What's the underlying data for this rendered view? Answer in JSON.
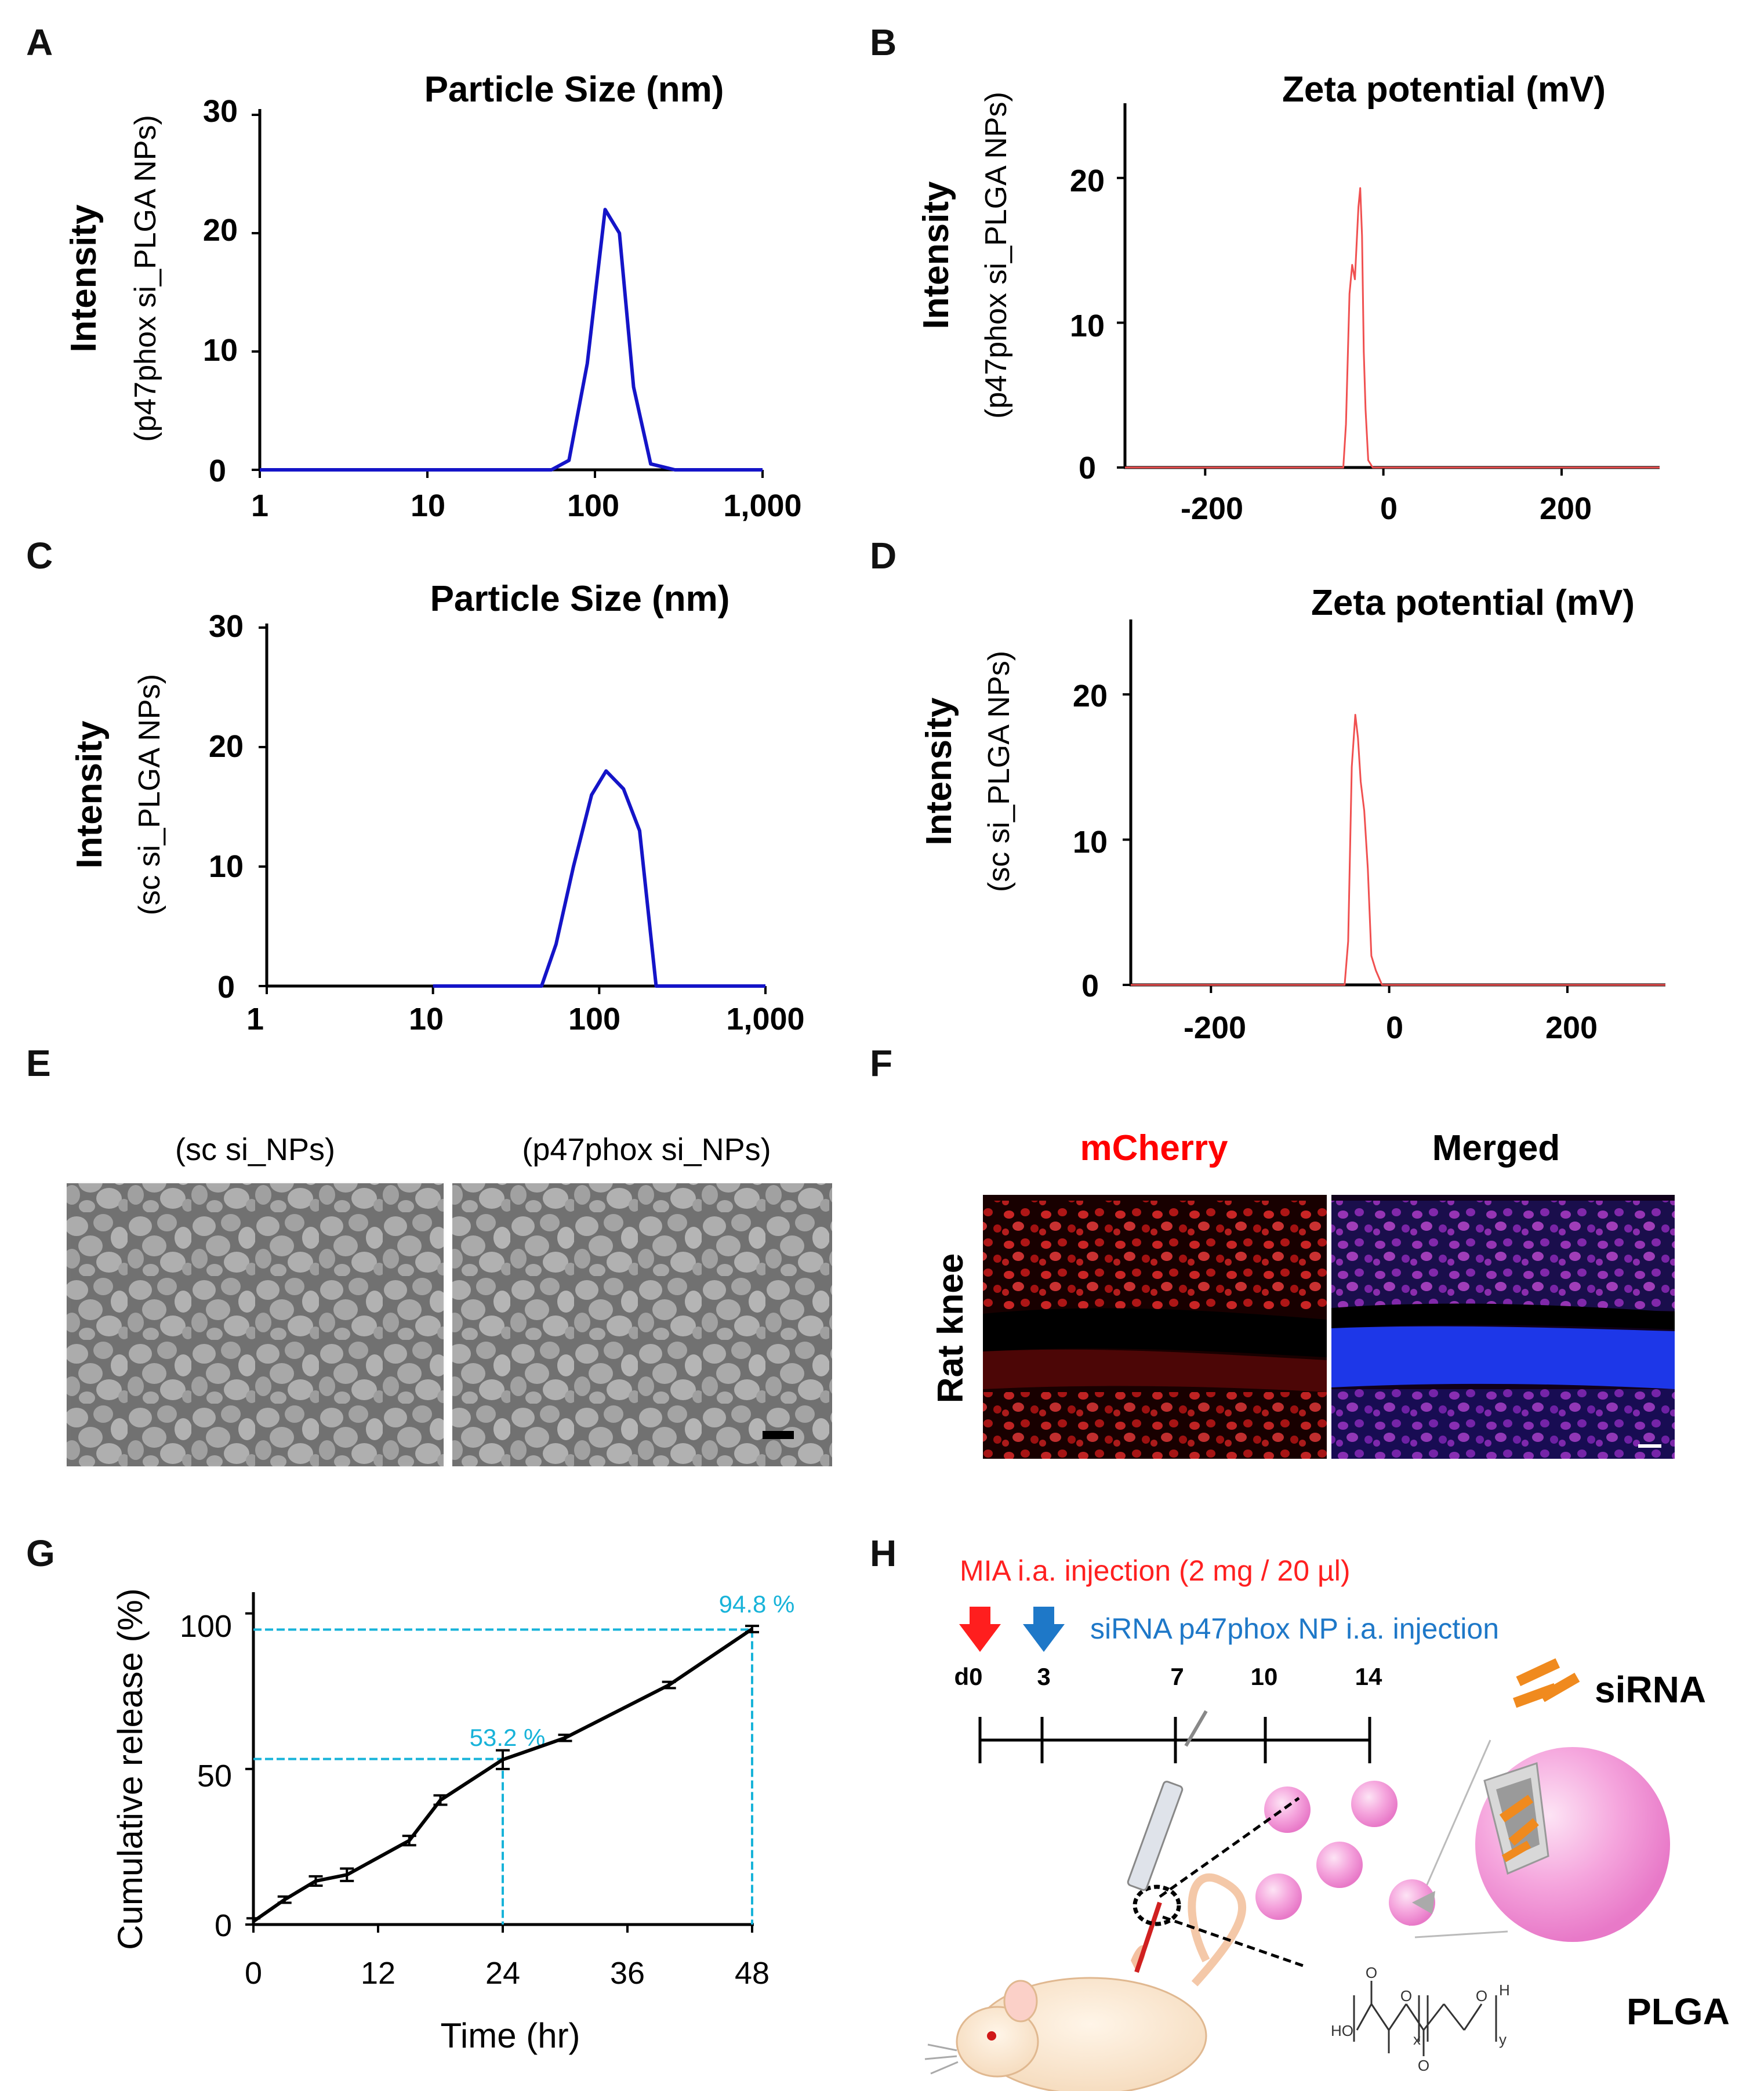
{
  "panels": {
    "A": "A",
    "B": "B",
    "C": "C",
    "D": "D",
    "E": "E",
    "F": "F",
    "G": "G",
    "H": "H"
  },
  "chart_data": [
    {
      "id": "A",
      "type": "line",
      "title": "Particle Size (nm)",
      "ylabel": "Intensity",
      "ylabel2": "(p47phox si_PLGA NPs)",
      "xscale": "log",
      "xlim": [
        1,
        1000
      ],
      "ylim": [
        0,
        30
      ],
      "xticks": [
        "1",
        "10",
        "100",
        "1,000"
      ],
      "yticks": [
        "0",
        "10",
        "20",
        "30"
      ],
      "color": "#1414c8",
      "x": [
        1,
        55,
        70,
        90,
        115,
        140,
        170,
        215,
        300,
        1000
      ],
      "y": [
        0,
        0,
        0.8,
        9,
        22,
        20,
        7,
        0.5,
        0,
        0
      ]
    },
    {
      "id": "B",
      "type": "line",
      "title": "Zeta potential (mV)",
      "ylabel": "Intensity",
      "ylabel2": "(p47phox si_PLGA NPs)",
      "xlim": [
        -290,
        310
      ],
      "ylim": [
        0,
        25
      ],
      "xticks": [
        "-200",
        "0",
        "200"
      ],
      "yticks": [
        "0",
        "10",
        "20"
      ],
      "color": "#f05050",
      "x": [
        -290,
        -45,
        -42,
        -38,
        -35,
        -32,
        -28,
        -26,
        -24,
        -22,
        -20,
        -17,
        -12,
        310
      ],
      "y": [
        0,
        0,
        3,
        12,
        14,
        13,
        18,
        19.3,
        16,
        8,
        4,
        0.5,
        0,
        0
      ]
    },
    {
      "id": "C",
      "type": "line",
      "title": "Particle Size (nm)",
      "ylabel": "Intensity",
      "ylabel2": "(sc si_PLGA NPs)",
      "xscale": "log",
      "xlim": [
        1,
        1000
      ],
      "ylim": [
        0,
        30
      ],
      "xticks": [
        "1",
        "10",
        "100",
        "1,000"
      ],
      "yticks": [
        "0",
        "10",
        "20",
        "30"
      ],
      "color": "#1414c8",
      "x": [
        10,
        45,
        55,
        70,
        90,
        110,
        140,
        175,
        220,
        1000
      ],
      "y": [
        0,
        0,
        3.5,
        10,
        16,
        18,
        16.5,
        13,
        0,
        0
      ]
    },
    {
      "id": "D",
      "type": "line",
      "title": "Zeta potential (mV)",
      "ylabel": "Intensity",
      "ylabel2": "(sc si_PLGA NPs)",
      "xlim": [
        -290,
        310
      ],
      "ylim": [
        0,
        25
      ],
      "xticks": [
        "-200",
        "0",
        "200"
      ],
      "yticks": [
        "0",
        "10",
        "20"
      ],
      "color": "#f05050",
      "x": [
        -290,
        -50,
        -46,
        -42,
        -38,
        -35,
        -32,
        -28,
        -24,
        -20,
        -15,
        -8,
        310
      ],
      "y": [
        0,
        0,
        3,
        15,
        18.6,
        17,
        14,
        12,
        8,
        2,
        1,
        0,
        0
      ]
    },
    {
      "id": "G",
      "type": "line",
      "xlabel": "Time (hr)",
      "ylabel": "Cumulative release (%)",
      "xlim": [
        0,
        48
      ],
      "ylim": [
        0,
        110
      ],
      "xticks": [
        "0",
        "12",
        "24",
        "36",
        "48"
      ],
      "yticks": [
        "0",
        "50",
        "100"
      ],
      "color": "#000000",
      "x": [
        0,
        3,
        6,
        9,
        15,
        18,
        24,
        30,
        40,
        48
      ],
      "y": [
        1,
        8,
        14,
        16,
        27,
        40,
        53,
        60,
        77,
        95
      ],
      "err": [
        1,
        1,
        1.5,
        2,
        1.5,
        1.5,
        3,
        1,
        1,
        1
      ],
      "annotations": [
        {
          "x": 24,
          "y": 53.2,
          "text": "53.2 %"
        },
        {
          "x": 48,
          "y": 94.8,
          "text": "94.8 %"
        }
      ],
      "guide_color": "#17b3d9"
    }
  ],
  "semE": {
    "left_caption": "(sc si_NPs)",
    "right_caption": "(p47phox si_NPs)"
  },
  "fluorF": {
    "left_caption": "mCherry",
    "right_caption": "Merged",
    "row_label": "Rat knee",
    "left_caption_color": "#ff0000"
  },
  "schemeH": {
    "mia_text": "MIA i.a. injection (2 mg / 20 µl)",
    "sirna_text": "siRNA p47phox NP i.a. injection",
    "mia_color": "#ff2020",
    "sirna_color": "#1e78c8",
    "days": [
      "d0",
      "3",
      "7",
      "10",
      "14"
    ],
    "sirna_label": "siRNA",
    "plga_label": "PLGA",
    "chem": {
      "ho": "HO",
      "h": "H",
      "x": "x",
      "y": "y",
      "o": "O"
    }
  }
}
